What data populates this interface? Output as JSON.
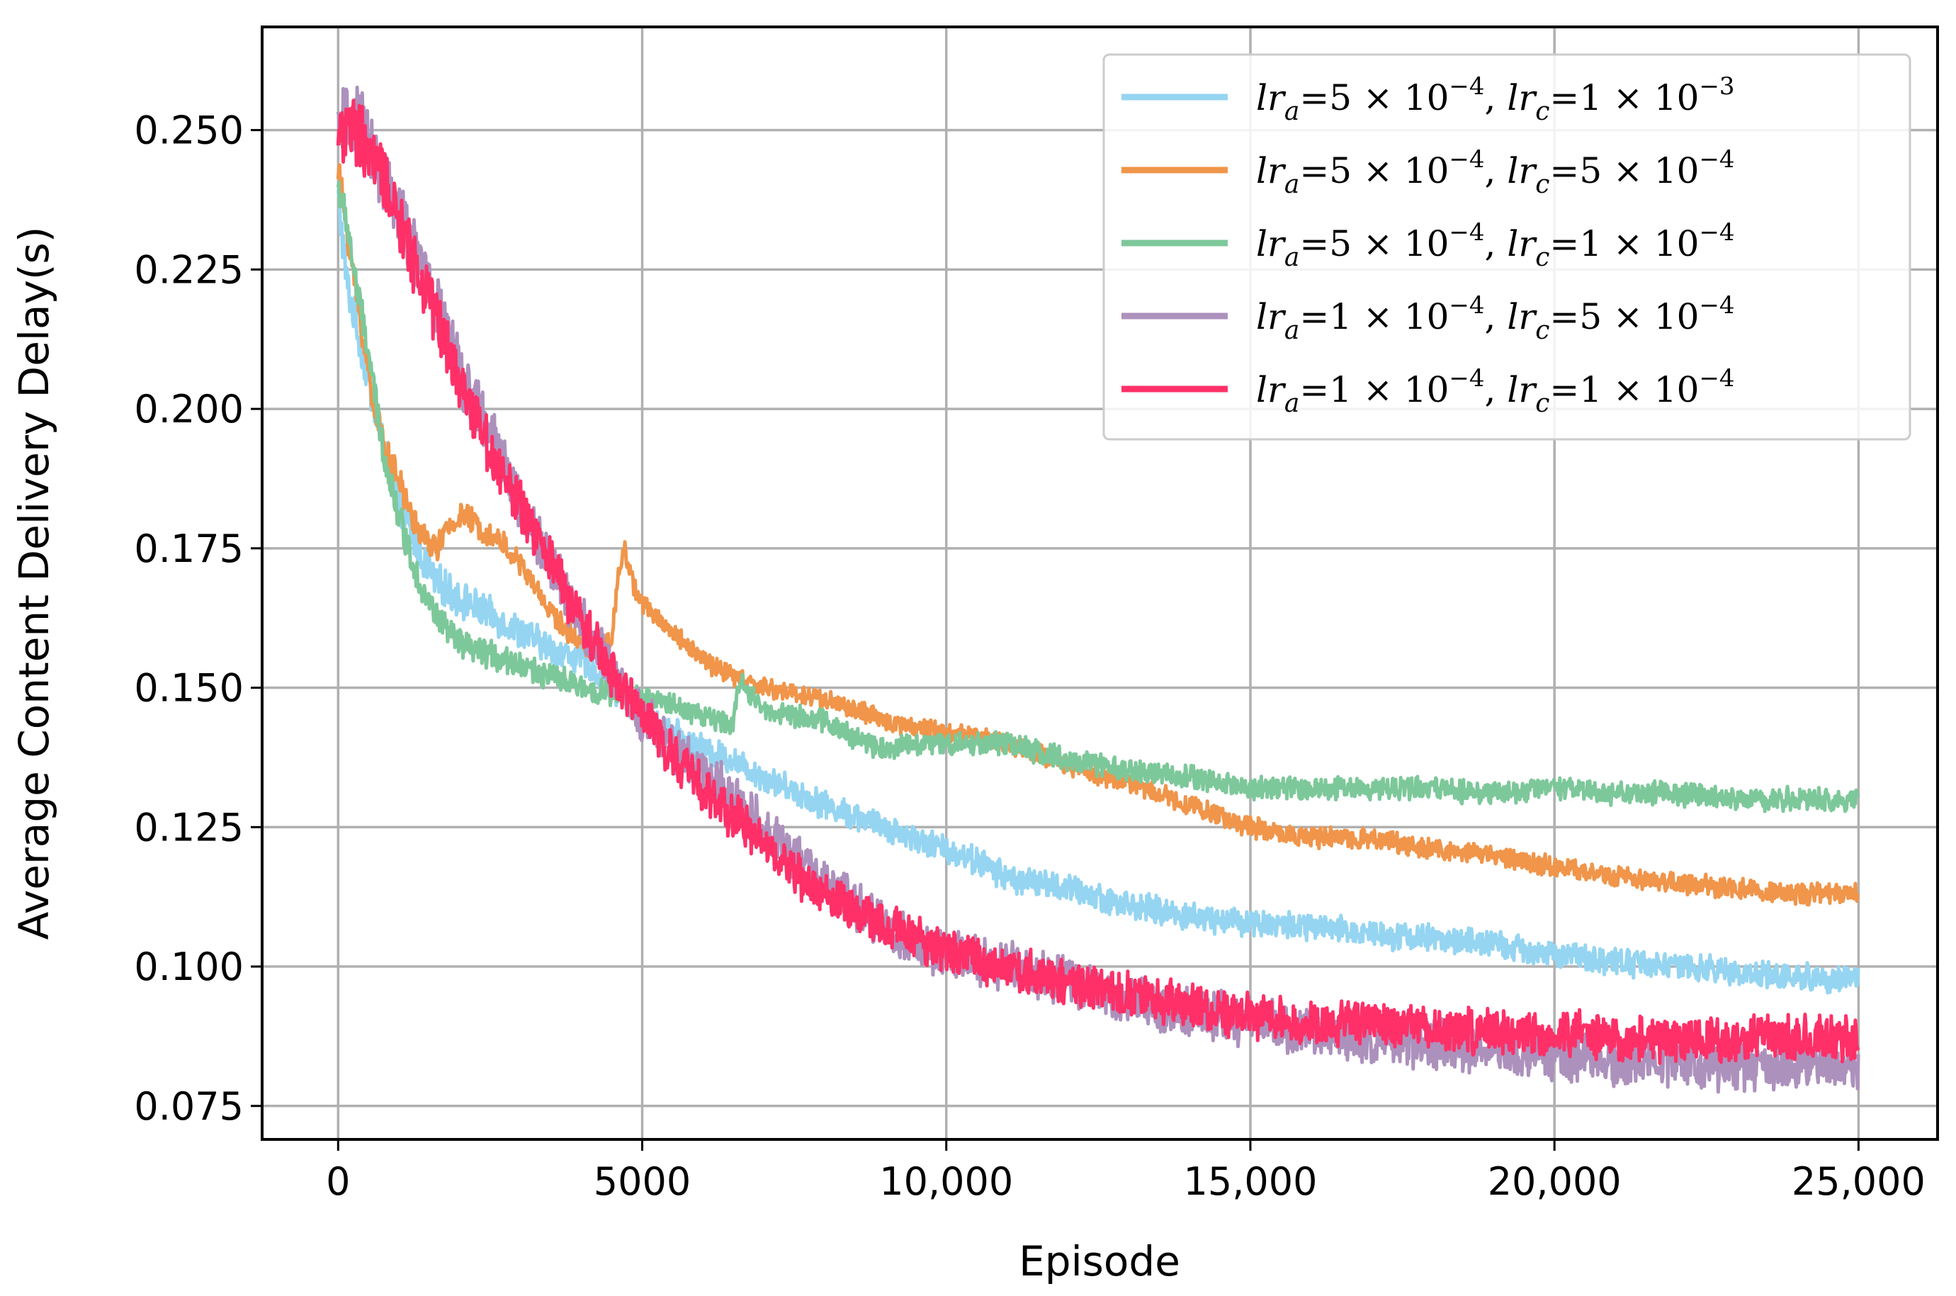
{
  "chart_data": {
    "type": "line",
    "title": "",
    "xlabel": "Episode",
    "ylabel": "Average Content Delivery Delay(s)",
    "xlim": [
      -1250,
      26300
    ],
    "ylim": [
      0.069,
      0.2685
    ],
    "grid": true,
    "legend_position": "top-right",
    "x_ticks": [
      0,
      5000,
      10000,
      15000,
      20000,
      25000
    ],
    "x_tick_labels": [
      "0",
      "5000",
      "10,000",
      "15,000",
      "20,000",
      "25,000"
    ],
    "y_ticks": [
      0.075,
      0.1,
      0.125,
      0.15,
      0.175,
      0.2,
      0.225,
      0.25
    ],
    "y_tick_labels": [
      "0.075",
      "0.100",
      "0.125",
      "0.150",
      "0.175",
      "0.200",
      "0.225",
      "0.250"
    ],
    "series": [
      {
        "name": "lr_a=5e-4, lr_c=1e-3",
        "legend": {
          "lr_a_mant": "5",
          "lr_a_exp": "−4",
          "lr_c_mant": "1",
          "lr_c_exp": "−3"
        },
        "color": "#95d5f2",
        "noise": 0.0022,
        "x": [
          0,
          150,
          300,
          500,
          700,
          1000,
          1300,
          1600,
          2000,
          2500,
          3000,
          3500,
          4000,
          4500,
          5000,
          5500,
          6000,
          6500,
          7000,
          8000,
          9000,
          10000,
          10500,
          11000,
          12000,
          13000,
          14000,
          15000,
          16000,
          17000,
          18000,
          19000,
          20000,
          21000,
          22000,
          23000,
          24000,
          25000
        ],
        "values": [
          0.238,
          0.222,
          0.215,
          0.205,
          0.195,
          0.183,
          0.175,
          0.169,
          0.166,
          0.163,
          0.16,
          0.157,
          0.155,
          0.15,
          0.145,
          0.142,
          0.139,
          0.137,
          0.134,
          0.129,
          0.125,
          0.121,
          0.119,
          0.116,
          0.114,
          0.111,
          0.109,
          0.108,
          0.107,
          0.106,
          0.105,
          0.104,
          0.102,
          0.101,
          0.1,
          0.099,
          0.098,
          0.098
        ]
      },
      {
        "name": "lr_a=5e-4, lr_c=5e-4",
        "legend": {
          "lr_a_mant": "5",
          "lr_a_exp": "−4",
          "lr_c_mant": "5",
          "lr_c_exp": "−4"
        },
        "color": "#f0954a",
        "noise": 0.0016,
        "x": [
          0,
          200,
          400,
          600,
          800,
          1000,
          1200,
          1400,
          1600,
          1800,
          2000,
          2200,
          2400,
          2700,
          3000,
          3300,
          3600,
          3900,
          4200,
          4500,
          4600,
          4700,
          4800,
          5000,
          5500,
          6000,
          6500,
          7000,
          7500,
          8000,
          8500,
          9000,
          10000,
          11000,
          12000,
          13000,
          14000,
          14500,
          15000,
          16000,
          17000,
          18000,
          19000,
          20000,
          21000,
          22000,
          23000,
          24000,
          25000
        ],
        "values": [
          0.243,
          0.228,
          0.213,
          0.2,
          0.192,
          0.187,
          0.181,
          0.177,
          0.175,
          0.178,
          0.181,
          0.18,
          0.178,
          0.176,
          0.172,
          0.167,
          0.162,
          0.159,
          0.157,
          0.158,
          0.17,
          0.176,
          0.17,
          0.165,
          0.16,
          0.155,
          0.152,
          0.15,
          0.149,
          0.148,
          0.146,
          0.144,
          0.142,
          0.14,
          0.136,
          0.133,
          0.129,
          0.127,
          0.125,
          0.123,
          0.123,
          0.121,
          0.12,
          0.118,
          0.116,
          0.115,
          0.114,
          0.113,
          0.113
        ]
      },
      {
        "name": "lr_a=5e-4, lr_c=1e-4",
        "legend": {
          "lr_a_mant": "5",
          "lr_a_exp": "−4",
          "lr_c_mant": "1",
          "lr_c_exp": "−4"
        },
        "color": "#7dc89a",
        "noise": 0.0018,
        "x": [
          0,
          150,
          300,
          500,
          700,
          900,
          1100,
          1300,
          1500,
          1800,
          2100,
          2500,
          3000,
          3500,
          4000,
          4500,
          5000,
          5500,
          6000,
          6500,
          6600,
          6700,
          7000,
          7500,
          8000,
          8500,
          9000,
          9500,
          10000,
          11000,
          12000,
          13000,
          14000,
          15000,
          16000,
          17000,
          18000,
          19000,
          20000,
          21000,
          22000,
          23000,
          24000,
          25000
        ],
        "values": [
          0.24,
          0.233,
          0.222,
          0.21,
          0.195,
          0.185,
          0.177,
          0.17,
          0.165,
          0.16,
          0.157,
          0.156,
          0.154,
          0.152,
          0.15,
          0.149,
          0.148,
          0.147,
          0.145,
          0.143,
          0.152,
          0.15,
          0.146,
          0.145,
          0.144,
          0.141,
          0.139,
          0.14,
          0.14,
          0.14,
          0.137,
          0.135,
          0.134,
          0.132,
          0.132,
          0.132,
          0.132,
          0.131,
          0.132,
          0.131,
          0.131,
          0.13,
          0.13,
          0.13
        ]
      },
      {
        "name": "lr_a=1e-4, lr_c=5e-4",
        "legend": {
          "lr_a_mant": "1",
          "lr_a_exp": "−4",
          "lr_c_mant": "5",
          "lr_c_exp": "−4"
        },
        "color": "#ad91bd",
        "noise": 0.0038,
        "x": [
          0,
          200,
          400,
          600,
          800,
          1000,
          1500,
          2000,
          2500,
          3000,
          3500,
          4000,
          4500,
          5000,
          5500,
          6000,
          6500,
          7000,
          7500,
          8000,
          8500,
          9000,
          9500,
          10000,
          11000,
          12000,
          13000,
          14000,
          15000,
          16000,
          17000,
          18000,
          19000,
          20000,
          21000,
          22000,
          23000,
          24000,
          25000
        ],
        "values": [
          0.25,
          0.252,
          0.25,
          0.245,
          0.24,
          0.235,
          0.222,
          0.207,
          0.195,
          0.183,
          0.172,
          0.162,
          0.153,
          0.145,
          0.139,
          0.135,
          0.13,
          0.125,
          0.12,
          0.115,
          0.111,
          0.107,
          0.104,
          0.102,
          0.1,
          0.097,
          0.094,
          0.092,
          0.09,
          0.088,
          0.087,
          0.086,
          0.085,
          0.084,
          0.083,
          0.083,
          0.082,
          0.082,
          0.082
        ]
      },
      {
        "name": "lr_a=1e-4, lr_c=1e-4",
        "legend": {
          "lr_a_mant": "1",
          "lr_a_exp": "−4",
          "lr_c_mant": "1",
          "lr_c_exp": "−4"
        },
        "color": "#ff3068",
        "noise": 0.0036,
        "x": [
          0,
          200,
          400,
          600,
          800,
          1000,
          1500,
          2000,
          2500,
          3000,
          3500,
          4000,
          4500,
          5000,
          5500,
          6000,
          6500,
          7000,
          7500,
          8000,
          8500,
          9000,
          9500,
          10000,
          11000,
          12000,
          13000,
          14000,
          15000,
          16000,
          17000,
          18000,
          19000,
          20000,
          21000,
          22000,
          23000,
          24000,
          25000
        ],
        "values": [
          0.25,
          0.25,
          0.248,
          0.244,
          0.24,
          0.233,
          0.22,
          0.205,
          0.193,
          0.182,
          0.172,
          0.162,
          0.153,
          0.145,
          0.138,
          0.132,
          0.127,
          0.122,
          0.117,
          0.113,
          0.11,
          0.107,
          0.105,
          0.103,
          0.1,
          0.097,
          0.095,
          0.093,
          0.091,
          0.09,
          0.09,
          0.089,
          0.088,
          0.088,
          0.087,
          0.087,
          0.087,
          0.087,
          0.087
        ]
      }
    ]
  }
}
